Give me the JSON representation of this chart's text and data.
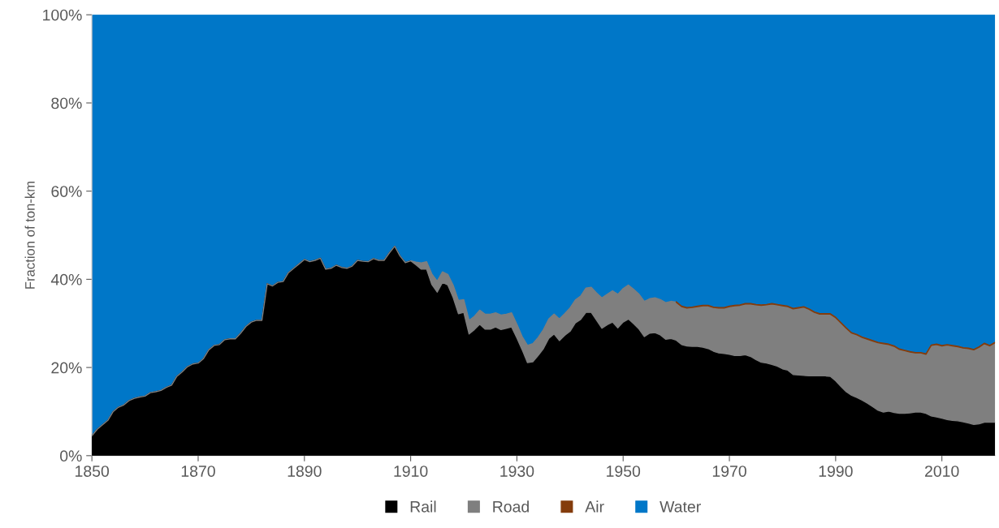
{
  "chart_data": {
    "type": "area",
    "stacked": true,
    "ylabel": "Fraction of ton-km",
    "x": [
      1850,
      1851,
      1852,
      1853,
      1854,
      1855,
      1856,
      1857,
      1858,
      1859,
      1860,
      1861,
      1862,
      1863,
      1864,
      1865,
      1866,
      1867,
      1868,
      1869,
      1870,
      1871,
      1872,
      1873,
      1874,
      1875,
      1876,
      1877,
      1878,
      1879,
      1880,
      1881,
      1882,
      1883,
      1884,
      1885,
      1886,
      1887,
      1888,
      1889,
      1890,
      1891,
      1892,
      1893,
      1894,
      1895,
      1896,
      1897,
      1898,
      1899,
      1900,
      1901,
      1902,
      1903,
      1904,
      1905,
      1906,
      1907,
      1908,
      1909,
      1910,
      1911,
      1912,
      1913,
      1914,
      1915,
      1916,
      1917,
      1918,
      1919,
      1920,
      1921,
      1922,
      1923,
      1924,
      1925,
      1926,
      1927,
      1928,
      1929,
      1930,
      1931,
      1932,
      1933,
      1934,
      1935,
      1936,
      1937,
      1938,
      1939,
      1940,
      1941,
      1942,
      1943,
      1944,
      1945,
      1946,
      1947,
      1948,
      1949,
      1950,
      1951,
      1952,
      1953,
      1954,
      1955,
      1956,
      1957,
      1958,
      1959,
      1960,
      1961,
      1962,
      1963,
      1964,
      1965,
      1966,
      1967,
      1968,
      1969,
      1970,
      1971,
      1972,
      1973,
      1974,
      1975,
      1976,
      1977,
      1978,
      1979,
      1980,
      1981,
      1982,
      1983,
      1984,
      1985,
      1986,
      1987,
      1988,
      1989,
      1990,
      1991,
      1992,
      1993,
      1994,
      1995,
      1996,
      1997,
      1998,
      1999,
      2000,
      2001,
      2002,
      2003,
      2004,
      2005,
      2006,
      2007,
      2008,
      2009,
      2010,
      2011,
      2012,
      2013,
      2014,
      2015,
      2016,
      2017,
      2018,
      2019,
      2020
    ],
    "series": [
      {
        "name": "Rail",
        "color": "#000000",
        "values": [
          4.5,
          6,
          7,
          8,
          10,
          11,
          11.5,
          12.5,
          13,
          13.3,
          13.5,
          14.3,
          14.5,
          14.8,
          15.5,
          16,
          18,
          19,
          20.2,
          20.8,
          21,
          22,
          24,
          25,
          25.2,
          26.3,
          26.5,
          26.5,
          27.8,
          29.3,
          30.3,
          30.7,
          30.7,
          39,
          38.5,
          39.3,
          39.5,
          41.5,
          42.5,
          43.5,
          44.5,
          44,
          44.3,
          44.8,
          42.3,
          42.5,
          43.2,
          42.7,
          42.5,
          43,
          44.3,
          44.1,
          44,
          44.7,
          44.3,
          44.3,
          46,
          47.5,
          45.3,
          43.8,
          44.2,
          43.3,
          42.3,
          42.3,
          38.8,
          37.1,
          39.3,
          38.7,
          35.9,
          32.2,
          32.5,
          27.6,
          28.6,
          29.8,
          28.7,
          28.7,
          29.2,
          28.6,
          28.9,
          29.2,
          26.7,
          24.0,
          21.1,
          21.3,
          22.7,
          24.3,
          26.6,
          27.6,
          26.1,
          27.3,
          28.2,
          30.1,
          30.9,
          32.5,
          32.5,
          30.7,
          28.9,
          29.7,
          30.3,
          29.0,
          30.3,
          31.0,
          29.9,
          28.7,
          27.0,
          27.8,
          27.9,
          27.4,
          26.4,
          26.6,
          26.2,
          25.2,
          24.9,
          24.8,
          24.8,
          24.6,
          24.3,
          23.7,
          23.3,
          23.2,
          23.0,
          22.7,
          22.7,
          22.9,
          22.5,
          21.8,
          21.2,
          21.0,
          20.7,
          20.3,
          19.7,
          19.4,
          18.4,
          18.3,
          18.2,
          18.1,
          18.1,
          18.1,
          18.1,
          18.0,
          17.0,
          15.7,
          14.5,
          13.7,
          13.2,
          12.6,
          11.9,
          11.1,
          10.3,
          9.9,
          10.1,
          9.8,
          9.6,
          9.6,
          9.7,
          9.9,
          9.9,
          9.6,
          9.0,
          8.8,
          8.5,
          8.2,
          8.0,
          7.9,
          7.7,
          7.4,
          7.1,
          7.2,
          7.6,
          7.6,
          7.6
        ]
      },
      {
        "name": "Road",
        "color": "#7f7f7f",
        "values": [
          0,
          0,
          0,
          0,
          0,
          0,
          0,
          0,
          0,
          0,
          0,
          0,
          0,
          0,
          0,
          0,
          0,
          0,
          0,
          0,
          0,
          0,
          0,
          0,
          0,
          0,
          0,
          0,
          0,
          0,
          0,
          0,
          0,
          0,
          0,
          0,
          0,
          0,
          0,
          0,
          0,
          0,
          0,
          0,
          0,
          0,
          0,
          0,
          0,
          0,
          0,
          0,
          0,
          0,
          0,
          0,
          0,
          0,
          0,
          0,
          0,
          0.6,
          1.4,
          1.7,
          2.4,
          2.5,
          2.4,
          2.4,
          2.8,
          3.0,
          2.9,
          3.1,
          3.0,
          3.2,
          3.4,
          3.4,
          3.2,
          3.3,
          3.2,
          3.2,
          3.1,
          3.0,
          3.9,
          4.1,
          4.1,
          4.3,
          4.4,
          4.5,
          4.9,
          4.9,
          5.3,
          5.2,
          5.3,
          5.5,
          5.7,
          6.2,
          6.9,
          6.9,
          7.1,
          7.6,
          7.6,
          7.7,
          7.8,
          7.9,
          8.0,
          7.8,
          7.9,
          8.0,
          8.3,
          8.4,
          8.6,
          8.6,
          8.6,
          8.8,
          9.0,
          9.4,
          9.7,
          9.9,
          10.2,
          10.3,
          10.8,
          11.3,
          11.4,
          11.5,
          11.9,
          12.4,
          12.9,
          13.2,
          13.7,
          13.9,
          14.3,
          14.4,
          14.9,
          15.2,
          15.5,
          15.1,
          14.4,
          14.0,
          14.0,
          14.1,
          14.3,
          14.4,
          14.4,
          14.1,
          14.2,
          14.2,
          14.5,
          14.9,
          15.3,
          15.5,
          15.1,
          15.0,
          14.5,
          14.2,
          13.8,
          13.4,
          13.4,
          13.4,
          16.0,
          16.4,
          16.4,
          16.9,
          16.9,
          16.8,
          16.7,
          16.9,
          16.9,
          17.4,
          17.8,
          17.3,
          18.0
        ]
      },
      {
        "name": "Air",
        "color": "#843c0c",
        "values": [
          null,
          null,
          null,
          null,
          null,
          null,
          null,
          null,
          null,
          null,
          null,
          null,
          null,
          null,
          null,
          null,
          null,
          null,
          null,
          null,
          null,
          null,
          null,
          null,
          null,
          null,
          null,
          null,
          null,
          null,
          null,
          null,
          null,
          null,
          null,
          null,
          null,
          null,
          null,
          null,
          null,
          null,
          null,
          null,
          null,
          null,
          null,
          null,
          null,
          null,
          null,
          null,
          null,
          null,
          null,
          null,
          null,
          null,
          null,
          null,
          null,
          null,
          null,
          null,
          null,
          null,
          null,
          null,
          null,
          null,
          null,
          null,
          null,
          null,
          null,
          null,
          null,
          null,
          null,
          null,
          null,
          null,
          null,
          null,
          null,
          null,
          null,
          null,
          null,
          null,
          null,
          null,
          null,
          null,
          null,
          null,
          null,
          null,
          null,
          null,
          null,
          null,
          null,
          null,
          null,
          null,
          null,
          null,
          null,
          null,
          0.1,
          0.1,
          0.1,
          0.1,
          0.1,
          0.1,
          0.1,
          0.1,
          0.1,
          0.1,
          0.1,
          0.1,
          0.1,
          0.1,
          0.1,
          0.1,
          0.1,
          0.1,
          0.1,
          0.1,
          0.1,
          0.1,
          0.1,
          0.1,
          0.1,
          0.1,
          0.1,
          0.1,
          0.1,
          0.1,
          0.1,
          0.1,
          0.1,
          0.1,
          0.1,
          0.1,
          0.1,
          0.1,
          0.1,
          0.1,
          0.1,
          0.1,
          0.1,
          0.1,
          0.1,
          0.1,
          0.1,
          0.1,
          0.1,
          0.1,
          0.1,
          0.1,
          0.1,
          0.1,
          0.1,
          0.1,
          0.1,
          0.1,
          0.1,
          0.1,
          0.1
        ]
      },
      {
        "name": "Water",
        "color": "#0077c8",
        "values": [
          95.5,
          94,
          93,
          92,
          90,
          89,
          88.5,
          87.5,
          87,
          86.7,
          86.5,
          85.7,
          85.5,
          85.2,
          84.5,
          84,
          82,
          81,
          79.8,
          79.2,
          79,
          78,
          76,
          75,
          74.8,
          73.7,
          73.5,
          73.5,
          72.2,
          70.7,
          69.7,
          69.3,
          69.3,
          61,
          61.5,
          60.7,
          60.5,
          58.5,
          57.5,
          56.5,
          55.5,
          56,
          55.7,
          55.2,
          57.7,
          57.5,
          56.8,
          57.3,
          57.5,
          57,
          55.7,
          55.9,
          56,
          55.3,
          55.7,
          55.7,
          54,
          52.5,
          54.7,
          56.2,
          55.8,
          56.1,
          56.3,
          56.0,
          58.8,
          60.4,
          58.3,
          58.9,
          61.3,
          64.8,
          64.6,
          69.3,
          68.4,
          67.0,
          67.9,
          67.9,
          67.6,
          68.1,
          67.9,
          67.6,
          70.2,
          73.0,
          75.0,
          74.6,
          73.2,
          71.4,
          69.0,
          67.9,
          69.0,
          67.8,
          66.5,
          64.7,
          63.8,
          62.0,
          61.8,
          63.1,
          64.2,
          63.4,
          62.6,
          63.4,
          62.1,
          61.3,
          62.3,
          63.4,
          65.0,
          64.4,
          64.2,
          64.6,
          65.3,
          65.0,
          65.1,
          66.1,
          66.4,
          66.3,
          66.1,
          65.9,
          65.9,
          66.3,
          66.4,
          66.4,
          66.1,
          65.9,
          65.8,
          65.5,
          65.5,
          65.7,
          65.8,
          65.7,
          65.5,
          65.7,
          65.9,
          66.1,
          66.6,
          66.4,
          66.2,
          66.7,
          67.4,
          67.8,
          67.8,
          67.8,
          68.6,
          69.8,
          71.0,
          72.1,
          72.5,
          73.1,
          73.5,
          73.9,
          74.3,
          74.5,
          74.7,
          75.1,
          75.8,
          76.1,
          76.4,
          76.6,
          76.6,
          76.9,
          74.9,
          74.7,
          75.0,
          74.8,
          75.0,
          75.2,
          75.5,
          75.6,
          75.9,
          75.3,
          74.5,
          75.0,
          74.3
        ]
      }
    ],
    "xlim": [
      1850,
      2020
    ],
    "xticks": [
      1850,
      1870,
      1890,
      1910,
      1930,
      1950,
      1970,
      1990,
      2010
    ],
    "ylim": [
      0,
      100
    ],
    "yticks": [
      {
        "value": 0,
        "label": "0%"
      },
      {
        "value": 20,
        "label": "20%"
      },
      {
        "value": 40,
        "label": "40%"
      },
      {
        "value": 60,
        "label": "60%"
      },
      {
        "value": 80,
        "label": "80%"
      },
      {
        "value": 100,
        "label": "100%"
      }
    ],
    "legend": "bottom"
  }
}
